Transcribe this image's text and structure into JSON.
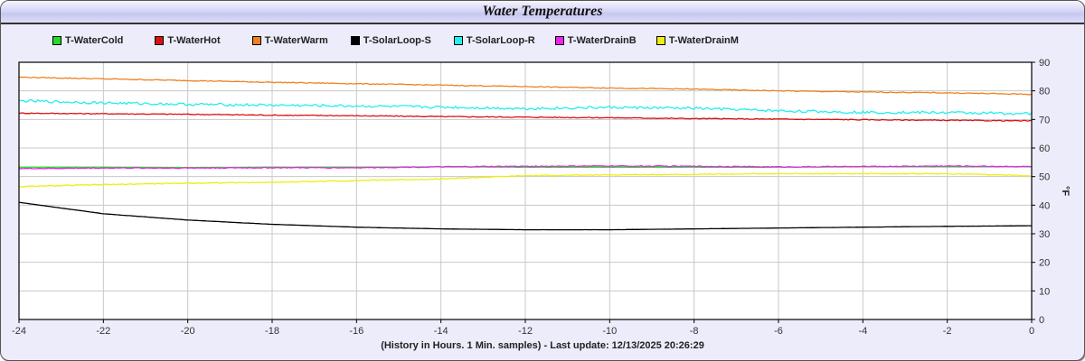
{
  "window": {
    "title": "Water Temperatures"
  },
  "chart_data": {
    "type": "line",
    "title": "Water Temperatures",
    "xlabel": "(History in Hours. 1 Min. samples) - Last update: 12/13/2025 20:26:29",
    "ylabel": "°F",
    "xlim": [
      -24,
      0
    ],
    "ylim": [
      0,
      90
    ],
    "x_ticks": [
      -24,
      -22,
      -20,
      -18,
      -16,
      -14,
      -12,
      -10,
      -8,
      -6,
      -4,
      -2,
      0
    ],
    "y_ticks": [
      0,
      10,
      20,
      30,
      40,
      50,
      60,
      70,
      80,
      90
    ],
    "grid": true,
    "legend_position": "top",
    "x": [
      -24,
      -22,
      -20,
      -18,
      -16,
      -14,
      -12,
      -10,
      -8,
      -6,
      -4,
      -2,
      0
    ],
    "series": [
      {
        "name": "T-WaterCold",
        "color": "#22dd22",
        "values": [
          53.3,
          53.3,
          53.2,
          53.3,
          53.3,
          53.4,
          53.3,
          53.3,
          53.3,
          53.3,
          53.4,
          53.4,
          53.4
        ]
      },
      {
        "name": "T-WaterHot",
        "color": "#dd1111",
        "values": [
          72.2,
          72.0,
          71.8,
          71.5,
          71.3,
          71.0,
          70.8,
          70.6,
          70.3,
          70.1,
          69.9,
          69.7,
          69.5
        ]
      },
      {
        "name": "T-WaterWarm",
        "color": "#f08020",
        "values": [
          84.8,
          84.2,
          83.6,
          83.0,
          82.5,
          82.0,
          81.5,
          81.0,
          80.6,
          80.0,
          79.6,
          79.3,
          78.8
        ]
      },
      {
        "name": "T-SolarLoop-S",
        "color": "#000000",
        "values": [
          41.0,
          37.0,
          34.8,
          33.3,
          32.3,
          31.7,
          31.4,
          31.4,
          31.7,
          32.0,
          32.3,
          32.6,
          32.8
        ]
      },
      {
        "name": "T-SolarLoop-R",
        "color": "#22eeee",
        "values": [
          76.5,
          75.8,
          75.3,
          75.0,
          74.7,
          74.3,
          73.8,
          74.2,
          73.9,
          73.0,
          72.5,
          72.4,
          72.0
        ]
      },
      {
        "name": "T-WaterDrainB",
        "color": "#ee22ee",
        "values": [
          52.8,
          53.0,
          53.0,
          53.1,
          53.1,
          53.4,
          53.6,
          53.7,
          53.6,
          53.4,
          53.5,
          53.7,
          53.5
        ]
      },
      {
        "name": "T-WaterDrainM",
        "color": "#eeee11",
        "values": [
          46.5,
          47.2,
          47.7,
          48.0,
          48.6,
          49.2,
          50.3,
          50.6,
          50.8,
          51.0,
          51.0,
          51.0,
          50.3
        ]
      }
    ]
  }
}
